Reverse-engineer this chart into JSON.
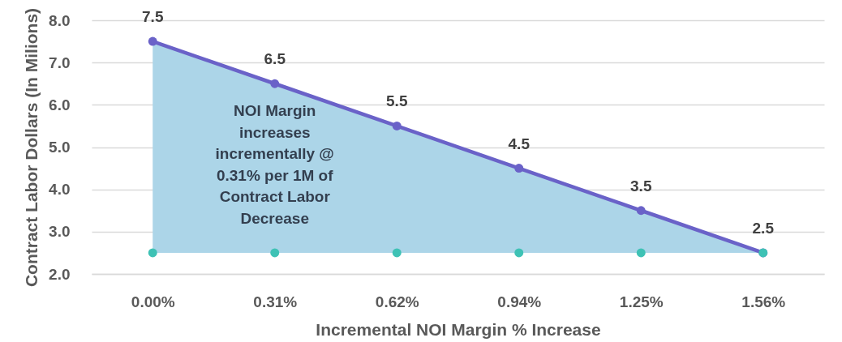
{
  "chart_data": {
    "type": "line",
    "xlabel": "Incremental NOI Margin % Increase",
    "ylabel": "Contract Labor Dollars (In Milions)",
    "categories": [
      "0.00%",
      "0.31%",
      "0.62%",
      "0.94%",
      "1.25%",
      "1.56%"
    ],
    "series": [
      {
        "color": "#6a62c8",
        "values": [
          7.5,
          6.5,
          5.5,
          4.5,
          3.5,
          2.5
        ],
        "marker": "circle",
        "value_labels": [
          "7.5",
          "6.5",
          "5.5",
          "4.5",
          "3.5",
          "2.5"
        ],
        "lower": [
          2.5,
          2.5,
          2.5,
          2.5,
          2.5,
          2.5
        ],
        "upper": [
          7.5,
          6.5,
          5.5,
          4.5,
          3.5,
          2.5
        ]
      },
      {
        "type": "scatter",
        "color": "#3ec2b5",
        "values": [
          2.5,
          2.5,
          2.5,
          2.5,
          2.5,
          2.5
        ],
        "marker": "circle"
      }
    ],
    "ylim": [
      2,
      8
    ],
    "yticks": [
      {
        "value": 2,
        "label": "2.0"
      },
      {
        "value": 3,
        "label": "3.0"
      },
      {
        "value": 4,
        "label": "4.0"
      },
      {
        "value": 5,
        "label": "5.0"
      },
      {
        "value": 6,
        "label": "6.0"
      },
      {
        "value": 7,
        "label": "7.0"
      },
      {
        "value": 8,
        "label": "8.0"
      }
    ],
    "grid": "y",
    "annotations": [
      "NOI Margin\nincreases\nincrementally @\n0.31% per 1M of\nContract Labor\nDecrease"
    ]
  }
}
